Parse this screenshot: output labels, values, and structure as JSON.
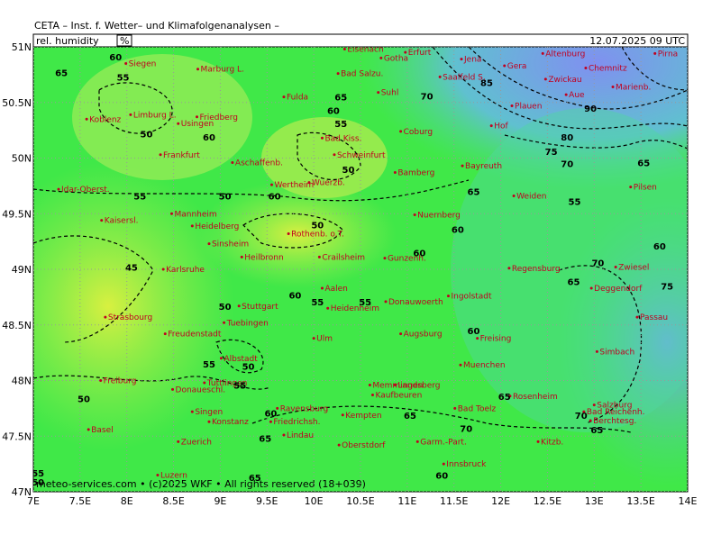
{
  "header": {
    "institute": "CETA – Inst. f. Wetter– und Klimafolgenanalysen –",
    "parameter": "rel. humidity",
    "unit": "%",
    "valid_time": "12.07.2025 09 UTC"
  },
  "footer": "meteo-services.com • (c)2025 WKF • All rights reserved (18+039)",
  "xlim": [
    7,
    14
  ],
  "ylim": [
    47,
    51
  ],
  "xticks": [
    {
      "value": 7,
      "label": "7E"
    },
    {
      "value": 7.5,
      "label": "7.5E"
    },
    {
      "value": 8,
      "label": "8E"
    },
    {
      "value": 8.5,
      "label": "8.5E"
    },
    {
      "value": 9,
      "label": "9E"
    },
    {
      "value": 9.5,
      "label": "9.5E"
    },
    {
      "value": 10,
      "label": "10E"
    },
    {
      "value": 10.5,
      "label": "10.5E"
    },
    {
      "value": 11,
      "label": "11E"
    },
    {
      "value": 11.5,
      "label": "11.5E"
    },
    {
      "value": 12,
      "label": "12E"
    },
    {
      "value": 12.5,
      "label": "12.5E"
    },
    {
      "value": 13,
      "label": "13E"
    },
    {
      "value": 13.5,
      "label": "13.5E"
    },
    {
      "value": 14,
      "label": "14E"
    }
  ],
  "yticks": [
    {
      "value": 47,
      "label": "47N"
    },
    {
      "value": 47.5,
      "label": "47.5N"
    },
    {
      "value": 48,
      "label": "48N"
    },
    {
      "value": 48.5,
      "label": "48.5N"
    },
    {
      "value": 49,
      "label": "49N"
    },
    {
      "value": 49.5,
      "label": "49.5N"
    },
    {
      "value": 50,
      "label": "50N"
    },
    {
      "value": 50.5,
      "label": "50.5N"
    },
    {
      "value": 51,
      "label": "51N"
    }
  ],
  "cities": [
    {
      "name": "Eisenach",
      "lon": 10.33,
      "lat": 50.98
    },
    {
      "name": "Gotha",
      "lon": 10.72,
      "lat": 50.9
    },
    {
      "name": "Erfurt",
      "lon": 10.98,
      "lat": 50.95
    },
    {
      "name": "Jena",
      "lon": 11.58,
      "lat": 50.89
    },
    {
      "name": "Gera",
      "lon": 12.04,
      "lat": 50.83
    },
    {
      "name": "Altenburg",
      "lon": 12.45,
      "lat": 50.94
    },
    {
      "name": "Chemnitz",
      "lon": 12.91,
      "lat": 50.81
    },
    {
      "name": "Pirna",
      "lon": 13.65,
      "lat": 50.94
    },
    {
      "name": "Siegen",
      "lon": 7.99,
      "lat": 50.85
    },
    {
      "name": "Marburg L.",
      "lon": 8.76,
      "lat": 50.8
    },
    {
      "name": "Bad Salzu.",
      "lon": 10.26,
      "lat": 50.76
    },
    {
      "name": "Saalfeld S.",
      "lon": 11.35,
      "lat": 50.73
    },
    {
      "name": "Zwickau",
      "lon": 12.48,
      "lat": 50.71
    },
    {
      "name": "Marienb.",
      "lon": 13.2,
      "lat": 50.64
    },
    {
      "name": "Fulda",
      "lon": 9.68,
      "lat": 50.55
    },
    {
      "name": "Suhl",
      "lon": 10.69,
      "lat": 50.59
    },
    {
      "name": "Koblenz",
      "lon": 7.57,
      "lat": 50.35
    },
    {
      "name": "Limburg L.",
      "lon": 8.04,
      "lat": 50.39
    },
    {
      "name": "Usingen",
      "lon": 8.55,
      "lat": 50.31
    },
    {
      "name": "Friedberg",
      "lon": 8.75,
      "lat": 50.37
    },
    {
      "name": "Plauen",
      "lon": 12.12,
      "lat": 50.47
    },
    {
      "name": "Aue",
      "lon": 12.7,
      "lat": 50.57
    },
    {
      "name": "Hof",
      "lon": 11.9,
      "lat": 50.29
    },
    {
      "name": "Bad Kiss.",
      "lon": 10.09,
      "lat": 50.18
    },
    {
      "name": "Coburg",
      "lon": 10.93,
      "lat": 50.24
    },
    {
      "name": "Schweinfurt",
      "lon": 10.22,
      "lat": 50.03
    },
    {
      "name": "Frankfurt",
      "lon": 8.36,
      "lat": 50.03
    },
    {
      "name": "Aschaffenb.",
      "lon": 9.13,
      "lat": 49.96
    },
    {
      "name": "Bamberg",
      "lon": 10.87,
      "lat": 49.87
    },
    {
      "name": "Bayreuth",
      "lon": 11.59,
      "lat": 49.93
    },
    {
      "name": "Idar-Oberst.",
      "lon": 7.27,
      "lat": 49.72
    },
    {
      "name": "Wuerzb.",
      "lon": 9.95,
      "lat": 49.78
    },
    {
      "name": "Wertheim",
      "lon": 9.55,
      "lat": 49.76
    },
    {
      "name": "Weiden",
      "lon": 12.14,
      "lat": 49.66
    },
    {
      "name": "Pilsen",
      "lon": 13.39,
      "lat": 49.74
    },
    {
      "name": "Mannheim",
      "lon": 8.48,
      "lat": 49.5
    },
    {
      "name": "Kaisersl.",
      "lon": 7.73,
      "lat": 49.44
    },
    {
      "name": "Heidelberg",
      "lon": 8.7,
      "lat": 49.39
    },
    {
      "name": "Nuernberg",
      "lon": 11.08,
      "lat": 49.49
    },
    {
      "name": "Sinsheim",
      "lon": 8.88,
      "lat": 49.23
    },
    {
      "name": "Rothenb. o.T.",
      "lon": 9.73,
      "lat": 49.32
    },
    {
      "name": "Heilbronn",
      "lon": 9.23,
      "lat": 49.11
    },
    {
      "name": "Crailsheim",
      "lon": 10.06,
      "lat": 49.11
    },
    {
      "name": "Gunzenh.",
      "lon": 10.76,
      "lat": 49.1
    },
    {
      "name": "Karlsruhe",
      "lon": 8.39,
      "lat": 49.0
    },
    {
      "name": "Regensburg",
      "lon": 12.09,
      "lat": 49.01
    },
    {
      "name": "Zwiesel",
      "lon": 13.23,
      "lat": 49.02
    },
    {
      "name": "Aalen",
      "lon": 10.09,
      "lat": 48.83
    },
    {
      "name": "Stuttgart",
      "lon": 9.2,
      "lat": 48.67
    },
    {
      "name": "Heidenheim",
      "lon": 10.15,
      "lat": 48.65
    },
    {
      "name": "Donauwoerth",
      "lon": 10.77,
      "lat": 48.71
    },
    {
      "name": "Ingolstadt",
      "lon": 11.44,
      "lat": 48.76
    },
    {
      "name": "Deggendorf",
      "lon": 12.97,
      "lat": 48.83
    },
    {
      "name": "Strasbourg",
      "lon": 7.77,
      "lat": 48.57
    },
    {
      "name": "Passau",
      "lon": 13.46,
      "lat": 48.57
    },
    {
      "name": "Tuebingen",
      "lon": 9.04,
      "lat": 48.52
    },
    {
      "name": "Freudenstadt",
      "lon": 8.41,
      "lat": 48.42
    },
    {
      "name": "Ulm",
      "lon": 10.0,
      "lat": 48.38
    },
    {
      "name": "Augsburg",
      "lon": 10.93,
      "lat": 48.42
    },
    {
      "name": "Freising",
      "lon": 11.75,
      "lat": 48.38
    },
    {
      "name": "Albstadt",
      "lon": 9.01,
      "lat": 48.2
    },
    {
      "name": "Muenchen",
      "lon": 11.57,
      "lat": 48.14
    },
    {
      "name": "Simbach",
      "lon": 13.03,
      "lat": 48.26
    },
    {
      "name": "Freiburg",
      "lon": 7.72,
      "lat": 48.0
    },
    {
      "name": "Tuttlingen",
      "lon": 8.83,
      "lat": 47.98
    },
    {
      "name": "Memmingen",
      "lon": 10.6,
      "lat": 47.96
    },
    {
      "name": "Landsberg",
      "lon": 10.87,
      "lat": 47.96
    },
    {
      "name": "Kaufbeuren",
      "lon": 10.63,
      "lat": 47.87
    },
    {
      "name": "Rosenheim",
      "lon": 12.1,
      "lat": 47.86
    },
    {
      "name": "Donaueschl.",
      "lon": 8.49,
      "lat": 47.92
    },
    {
      "name": "Basel",
      "lon": 7.59,
      "lat": 47.56
    },
    {
      "name": "Ravensburg",
      "lon": 9.61,
      "lat": 47.75
    },
    {
      "name": "Salzburg",
      "lon": 13.0,
      "lat": 47.78
    },
    {
      "name": "Bad Toelz",
      "lon": 11.51,
      "lat": 47.75
    },
    {
      "name": "Konstanz",
      "lon": 8.88,
      "lat": 47.63
    },
    {
      "name": "Singen",
      "lon": 8.7,
      "lat": 47.72
    },
    {
      "name": "Friedrichsh.",
      "lon": 9.54,
      "lat": 47.63
    },
    {
      "name": "Kempten",
      "lon": 10.31,
      "lat": 47.69
    },
    {
      "name": "Bad Reichenh.",
      "lon": 12.89,
      "lat": 47.72
    },
    {
      "name": "Berchtesg.",
      "lon": 12.96,
      "lat": 47.64
    },
    {
      "name": "Lindau",
      "lon": 9.68,
      "lat": 47.51
    },
    {
      "name": "Zuerich",
      "lon": 8.55,
      "lat": 47.45
    },
    {
      "name": "Oberstdorf",
      "lon": 10.27,
      "lat": 47.42
    },
    {
      "name": "Garm.-Part.",
      "lon": 11.11,
      "lat": 47.45
    },
    {
      "name": "Kitzb.",
      "lon": 12.4,
      "lat": 47.45
    },
    {
      "name": "Innsbruck",
      "lon": 11.39,
      "lat": 47.25
    },
    {
      "name": "Luzern",
      "lon": 8.33,
      "lat": 47.15
    }
  ],
  "contour_labels": [
    {
      "value": 65,
      "lon": 7.3,
      "lat": 50.77
    },
    {
      "value": 60,
      "lon": 7.88,
      "lat": 50.91
    },
    {
      "value": 55,
      "lon": 7.96,
      "lat": 50.73
    },
    {
      "value": 50,
      "lon": 8.21,
      "lat": 50.22
    },
    {
      "value": 60,
      "lon": 8.88,
      "lat": 50.19
    },
    {
      "value": 55,
      "lon": 8.14,
      "lat": 49.66
    },
    {
      "value": 50,
      "lon": 9.05,
      "lat": 49.66
    },
    {
      "value": 60,
      "lon": 9.58,
      "lat": 49.66
    },
    {
      "value": 65,
      "lon": 10.29,
      "lat": 50.55
    },
    {
      "value": 60,
      "lon": 10.21,
      "lat": 50.43
    },
    {
      "value": 55,
      "lon": 10.29,
      "lat": 50.31
    },
    {
      "value": 50,
      "lon": 10.37,
      "lat": 49.9
    },
    {
      "value": 45,
      "lon": 8.05,
      "lat": 49.02
    },
    {
      "value": 50,
      "lon": 9.05,
      "lat": 48.67
    },
    {
      "value": 60,
      "lon": 9.8,
      "lat": 48.77
    },
    {
      "value": 55,
      "lon": 10.04,
      "lat": 48.71
    },
    {
      "value": 55,
      "lon": 10.55,
      "lat": 48.71
    },
    {
      "value": 50,
      "lon": 9.3,
      "lat": 48.13
    },
    {
      "value": 55,
      "lon": 8.88,
      "lat": 48.15
    },
    {
      "value": 55,
      "lon": 9.21,
      "lat": 47.96
    },
    {
      "value": 60,
      "lon": 9.54,
      "lat": 47.71
    },
    {
      "value": 65,
      "lon": 9.48,
      "lat": 47.48
    },
    {
      "value": 65,
      "lon": 11.03,
      "lat": 47.69
    },
    {
      "value": 70,
      "lon": 11.63,
      "lat": 47.57
    },
    {
      "value": 60,
      "lon": 11.37,
      "lat": 47.15
    },
    {
      "value": 65,
      "lon": 9.37,
      "lat": 47.13
    },
    {
      "value": 55,
      "lon": 7.05,
      "lat": 47.17
    },
    {
      "value": 50,
      "lon": 7.05,
      "lat": 47.09
    },
    {
      "value": 50,
      "lon": 7.54,
      "lat": 47.84
    },
    {
      "value": 70,
      "lon": 11.21,
      "lat": 50.56
    },
    {
      "value": 85,
      "lon": 11.85,
      "lat": 50.68
    },
    {
      "value": 90,
      "lon": 12.96,
      "lat": 50.45
    },
    {
      "value": 80,
      "lon": 12.71,
      "lat": 50.19
    },
    {
      "value": 75,
      "lon": 12.54,
      "lat": 50.06
    },
    {
      "value": 70,
      "lon": 12.71,
      "lat": 49.95
    },
    {
      "value": 65,
      "lon": 13.53,
      "lat": 49.96
    },
    {
      "value": 60,
      "lon": 11.54,
      "lat": 49.36
    },
    {
      "value": 65,
      "lon": 11.71,
      "lat": 49.7
    },
    {
      "value": 55,
      "lon": 12.79,
      "lat": 49.61
    },
    {
      "value": 60,
      "lon": 13.7,
      "lat": 49.21
    },
    {
      "value": 60,
      "lon": 11.13,
      "lat": 49.15
    },
    {
      "value": 70,
      "lon": 13.04,
      "lat": 49.06
    },
    {
      "value": 65,
      "lon": 12.78,
      "lat": 48.89
    },
    {
      "value": 75,
      "lon": 13.78,
      "lat": 48.85
    },
    {
      "value": 60,
      "lon": 11.71,
      "lat": 48.45
    },
    {
      "value": 65,
      "lon": 12.04,
      "lat": 47.86
    },
    {
      "value": 70,
      "lon": 12.86,
      "lat": 47.69
    },
    {
      "value": 65,
      "lon": 13.03,
      "lat": 47.56
    },
    {
      "value": 50,
      "lon": 10.04,
      "lat": 49.4
    }
  ]
}
